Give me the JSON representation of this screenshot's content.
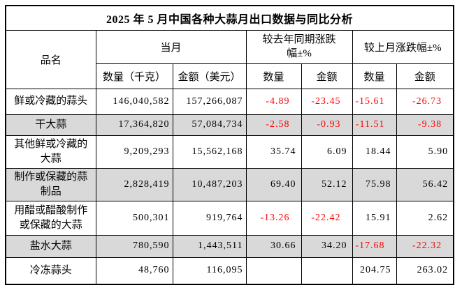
{
  "title": "2025 年 5 月中国各种大蒜月出口数据与同比分析",
  "table": {
    "columns": {
      "product": "品名",
      "current_month": "当月",
      "yoy_change": "较去年同期涨跌幅±%",
      "mom_change": "较上月涨跌幅±%",
      "quantity_kg": "数量（千克）",
      "amount_usd": "金额（美元）",
      "quantity": "数量",
      "amount": "金额"
    },
    "rows": [
      {
        "name": "鲜或冷藏的蒜头",
        "quantity_kg": "146,040,582",
        "amount_usd": "157,266,087",
        "yoy_quantity": "-4.89",
        "yoy_amount": "-23.45",
        "mom_quantity": "-15.61",
        "mom_amount": "-26.73",
        "shaded": false
      },
      {
        "name": "干大蒜",
        "quantity_kg": "17,364,820",
        "amount_usd": "57,084,734",
        "yoy_quantity": "-2.58",
        "yoy_amount": "-0.93",
        "mom_quantity": "-11.51",
        "mom_amount": "-9.38",
        "shaded": true
      },
      {
        "name": "其他鲜或冷藏的大蒜",
        "quantity_kg": "9,209,293",
        "amount_usd": "15,562,168",
        "yoy_quantity": "35.74",
        "yoy_amount": "6.09",
        "mom_quantity": "18.44",
        "mom_amount": "5.90",
        "shaded": false
      },
      {
        "name": "制作或保藏的蒜制品",
        "quantity_kg": "2,828,419",
        "amount_usd": "10,487,203",
        "yoy_quantity": "69.40",
        "yoy_amount": "52.12",
        "mom_quantity": "75.98",
        "mom_amount": "56.42",
        "shaded": true
      },
      {
        "name": "用醋或醋酸制作或保藏的大蒜",
        "quantity_kg": "500,301",
        "amount_usd": "919,764",
        "yoy_quantity": "-13.26",
        "yoy_amount": "-22.42",
        "mom_quantity": "15.91",
        "mom_amount": "2.62",
        "shaded": false
      },
      {
        "name": "盐水大蒜",
        "quantity_kg": "780,590",
        "amount_usd": "1,443,511",
        "yoy_quantity": "30.66",
        "yoy_amount": "34.20",
        "mom_quantity": "-17.68",
        "mom_amount": "-22.32",
        "shaded": true
      },
      {
        "name": "冷冻蒜头",
        "quantity_kg": "48,760",
        "amount_usd": "116,095",
        "yoy_quantity": "",
        "yoy_amount": "",
        "mom_quantity": "204.75",
        "mom_amount": "263.02",
        "shaded": false
      }
    ]
  },
  "colors": {
    "negative_value": "#ff0000",
    "shaded_row": "#d9d9d9",
    "border": "#000000",
    "background": "#ffffff"
  }
}
